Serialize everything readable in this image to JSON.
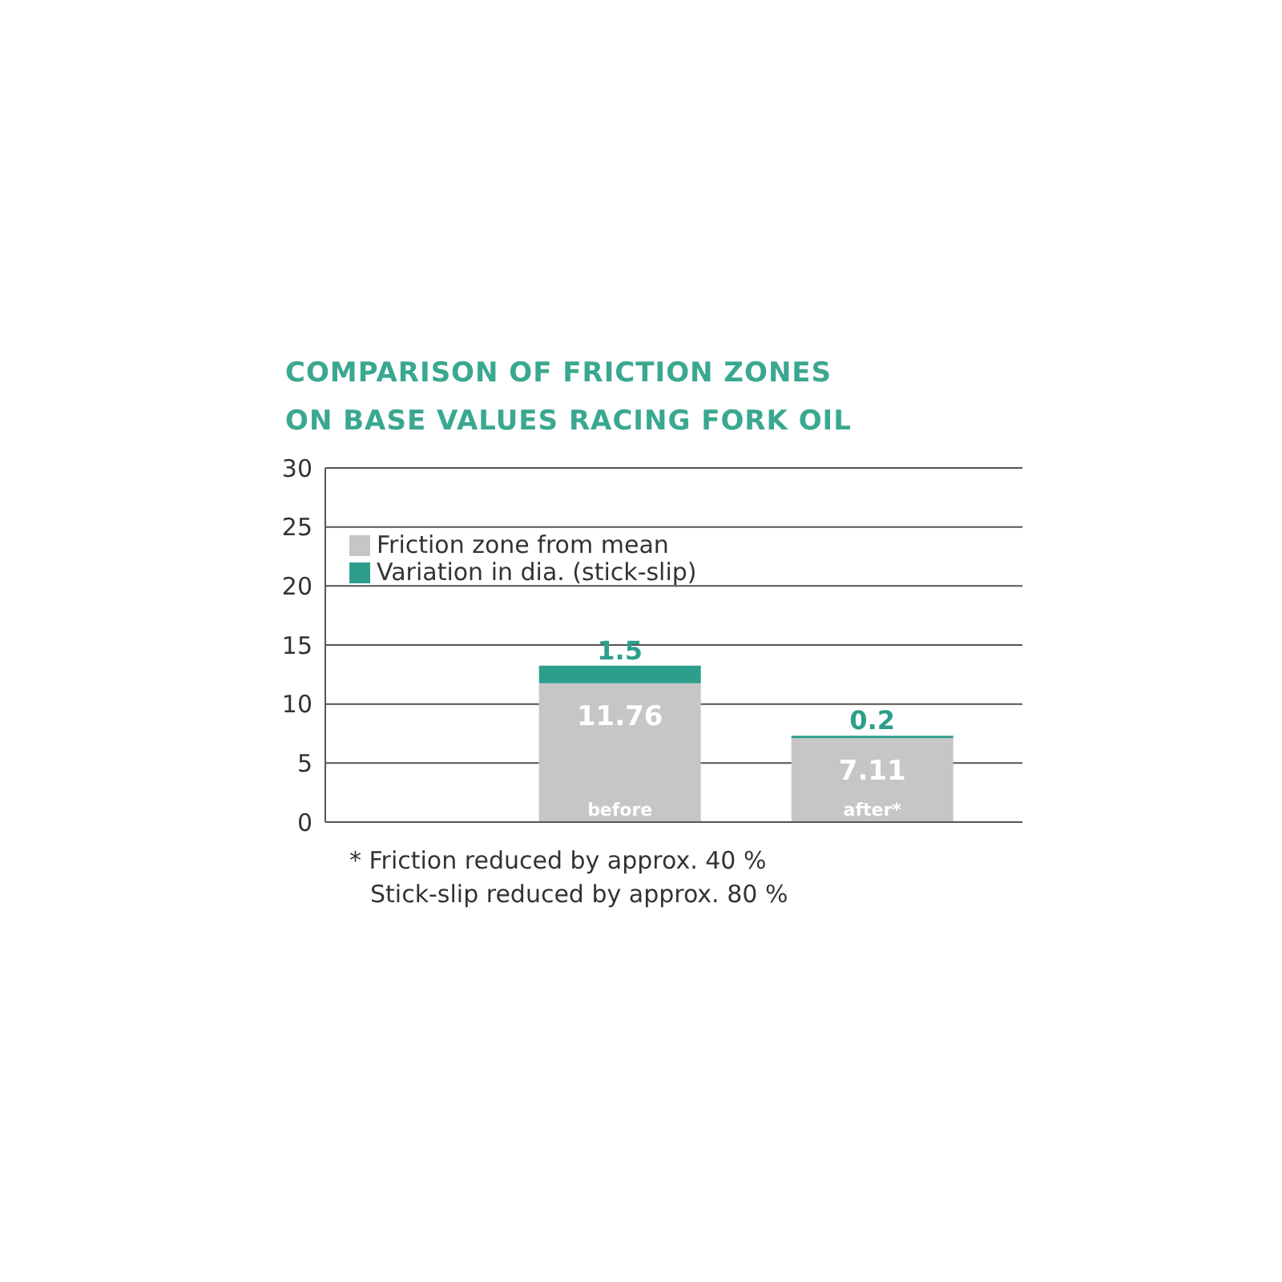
{
  "chart_data": {
    "type": "bar",
    "title": "COMPARISON OF FRICTION ZONES\nON BASE VALUES RACING FORK OIL",
    "categories": [
      "before",
      "after*"
    ],
    "stacked": true,
    "series": [
      {
        "name": "Friction zone from mean",
        "color": "#c6c6c6",
        "values": [
          11.76,
          7.11
        ]
      },
      {
        "name": "Variation in dia. (stick-slip)",
        "color": "#2e9e8c",
        "values": [
          1.5,
          0.2
        ]
      }
    ],
    "ylim": [
      0,
      30
    ],
    "yticks": [
      0,
      5,
      10,
      15,
      20,
      25,
      30
    ],
    "grid": "y",
    "legend": "top left",
    "data_labels": true,
    "annotations": [
      "* Friction reduced by approx. 40 %",
      "Stick-slip reduced by approx. 80 %"
    ]
  }
}
